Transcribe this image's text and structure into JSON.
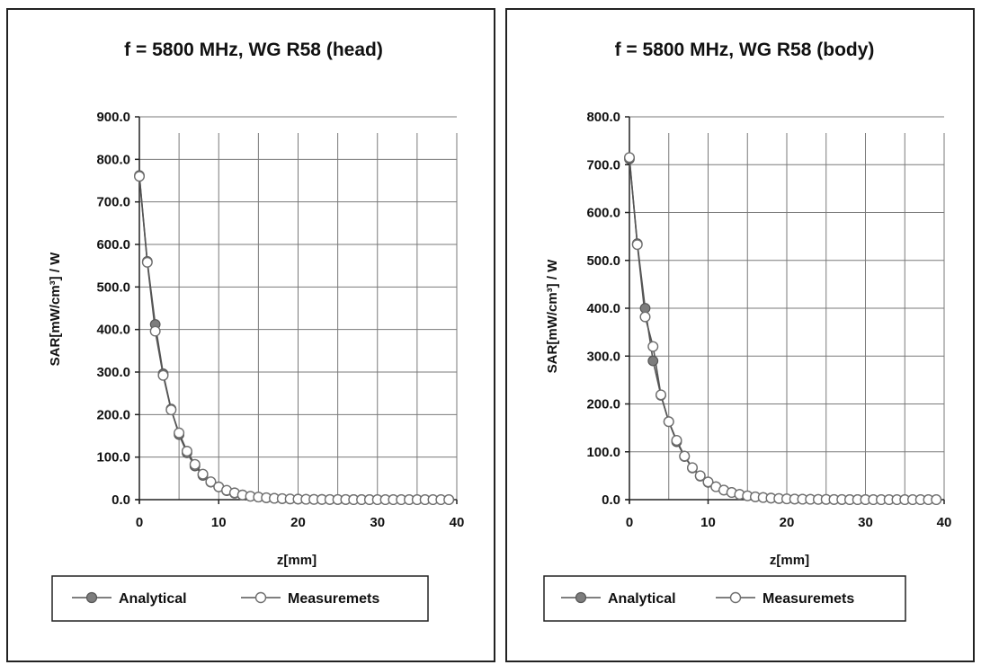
{
  "chart_data": [
    {
      "type": "line",
      "title": "f = 5800 MHz, WG R58 (head)",
      "xlabel": "z[mm]",
      "ylabel": "SAR[mW/cm³] / W",
      "xlim": [
        0,
        40
      ],
      "ylim": [
        0,
        900
      ],
      "xticks": [
        "0",
        "10",
        "20",
        "30",
        "40"
      ],
      "yticks": [
        "0.0",
        "100.0",
        "200.0",
        "300.0",
        "400.0",
        "500.0",
        "600.0",
        "700.0",
        "800.0",
        "900.0"
      ],
      "grid": true,
      "legend_position": "bottom",
      "series": [
        {
          "name": "Analytical",
          "marker": "filled-circle",
          "x": [
            0,
            1,
            2,
            3,
            4,
            5,
            6,
            7,
            8,
            9,
            10,
            11,
            12,
            13,
            14,
            15,
            16,
            17,
            18,
            19,
            20,
            21,
            22,
            23,
            24,
            25,
            26,
            27,
            28,
            29,
            30,
            31,
            32,
            33,
            34,
            35,
            36,
            37,
            38,
            39
          ],
          "y": [
            762,
            560,
            412,
            296,
            213,
            153,
            110,
            79,
            57,
            41,
            30,
            21,
            15,
            11,
            8,
            6,
            4.3,
            3.1,
            2.2,
            1.6,
            1.2,
            0.8,
            0.6,
            0.4,
            0.3,
            0.2,
            0.2,
            0.1,
            0.1,
            0.1,
            0,
            0,
            0,
            0,
            0,
            0,
            0,
            0,
            0,
            0
          ]
        },
        {
          "name": "Measuremets",
          "marker": "open-circle",
          "x": [
            0,
            1,
            2,
            3,
            4,
            5,
            6,
            7,
            8,
            9,
            10,
            11,
            12,
            13,
            14,
            15,
            16,
            17,
            18,
            19,
            20,
            21,
            22,
            23,
            24,
            25,
            26,
            27,
            28,
            29,
            30,
            31,
            32,
            33,
            34,
            35,
            36,
            37,
            38,
            39
          ],
          "y": [
            760,
            558,
            396,
            292,
            211,
            157,
            114,
            83,
            60,
            42,
            30,
            22,
            16,
            11,
            8,
            6,
            4.5,
            3.2,
            2.3,
            1.7,
            1.2,
            0.8,
            0.6,
            0.4,
            0.3,
            0.2,
            0.2,
            0.1,
            0.1,
            0.1,
            0,
            0,
            0,
            0,
            0,
            0,
            0,
            0,
            0,
            0
          ]
        }
      ]
    },
    {
      "type": "line",
      "title": "f = 5800 MHz, WG R58 (body)",
      "xlabel": "z[mm]",
      "ylabel": "SAR[mW/cm³] / W",
      "xlim": [
        0,
        40
      ],
      "ylim": [
        0,
        800
      ],
      "xticks": [
        "0",
        "10",
        "20",
        "30",
        "40"
      ],
      "yticks": [
        "0.0",
        "100.0",
        "200.0",
        "300.0",
        "400.0",
        "500.0",
        "600.0",
        "700.0",
        "800.0"
      ],
      "grid": true,
      "legend_position": "bottom",
      "series": [
        {
          "name": "Analytical",
          "marker": "filled-circle",
          "x": [
            0,
            1,
            2,
            3,
            4,
            5,
            6,
            7,
            8,
            9,
            10,
            11,
            12,
            13,
            14,
            15,
            16,
            17,
            18,
            19,
            20,
            21,
            22,
            23,
            24,
            25,
            26,
            27,
            28,
            29,
            30,
            31,
            32,
            33,
            34,
            35,
            36,
            37,
            38,
            39
          ],
          "y": [
            712,
            535,
            400,
            290,
            218,
            163,
            121,
            90,
            66,
            49,
            36,
            27,
            20,
            15,
            11,
            8,
            5.8,
            4.3,
            3.2,
            2.3,
            1.7,
            1.2,
            0.9,
            0.7,
            0.5,
            0.4,
            0.3,
            0.2,
            0.1,
            0.1,
            0.1,
            0,
            0,
            0,
            0,
            0,
            0,
            0,
            0,
            0
          ]
        },
        {
          "name": "Measuremets",
          "marker": "open-circle",
          "x": [
            0,
            1,
            2,
            3,
            4,
            5,
            6,
            7,
            8,
            9,
            10,
            11,
            12,
            13,
            14,
            15,
            16,
            17,
            18,
            19,
            20,
            21,
            22,
            23,
            24,
            25,
            26,
            27,
            28,
            29,
            30,
            31,
            32,
            33,
            34,
            35,
            36,
            37,
            38,
            39
          ],
          "y": [
            715,
            533,
            382,
            320,
            219,
            163,
            124,
            91,
            67,
            50,
            37,
            27,
            20,
            15,
            11,
            8,
            5.9,
            4.4,
            3.2,
            2.4,
            1.7,
            1.2,
            0.9,
            0.7,
            0.5,
            0.4,
            0.3,
            0.2,
            0.1,
            0.1,
            0.1,
            0,
            0,
            0,
            0,
            0,
            0,
            0,
            0,
            0
          ]
        }
      ]
    }
  ]
}
